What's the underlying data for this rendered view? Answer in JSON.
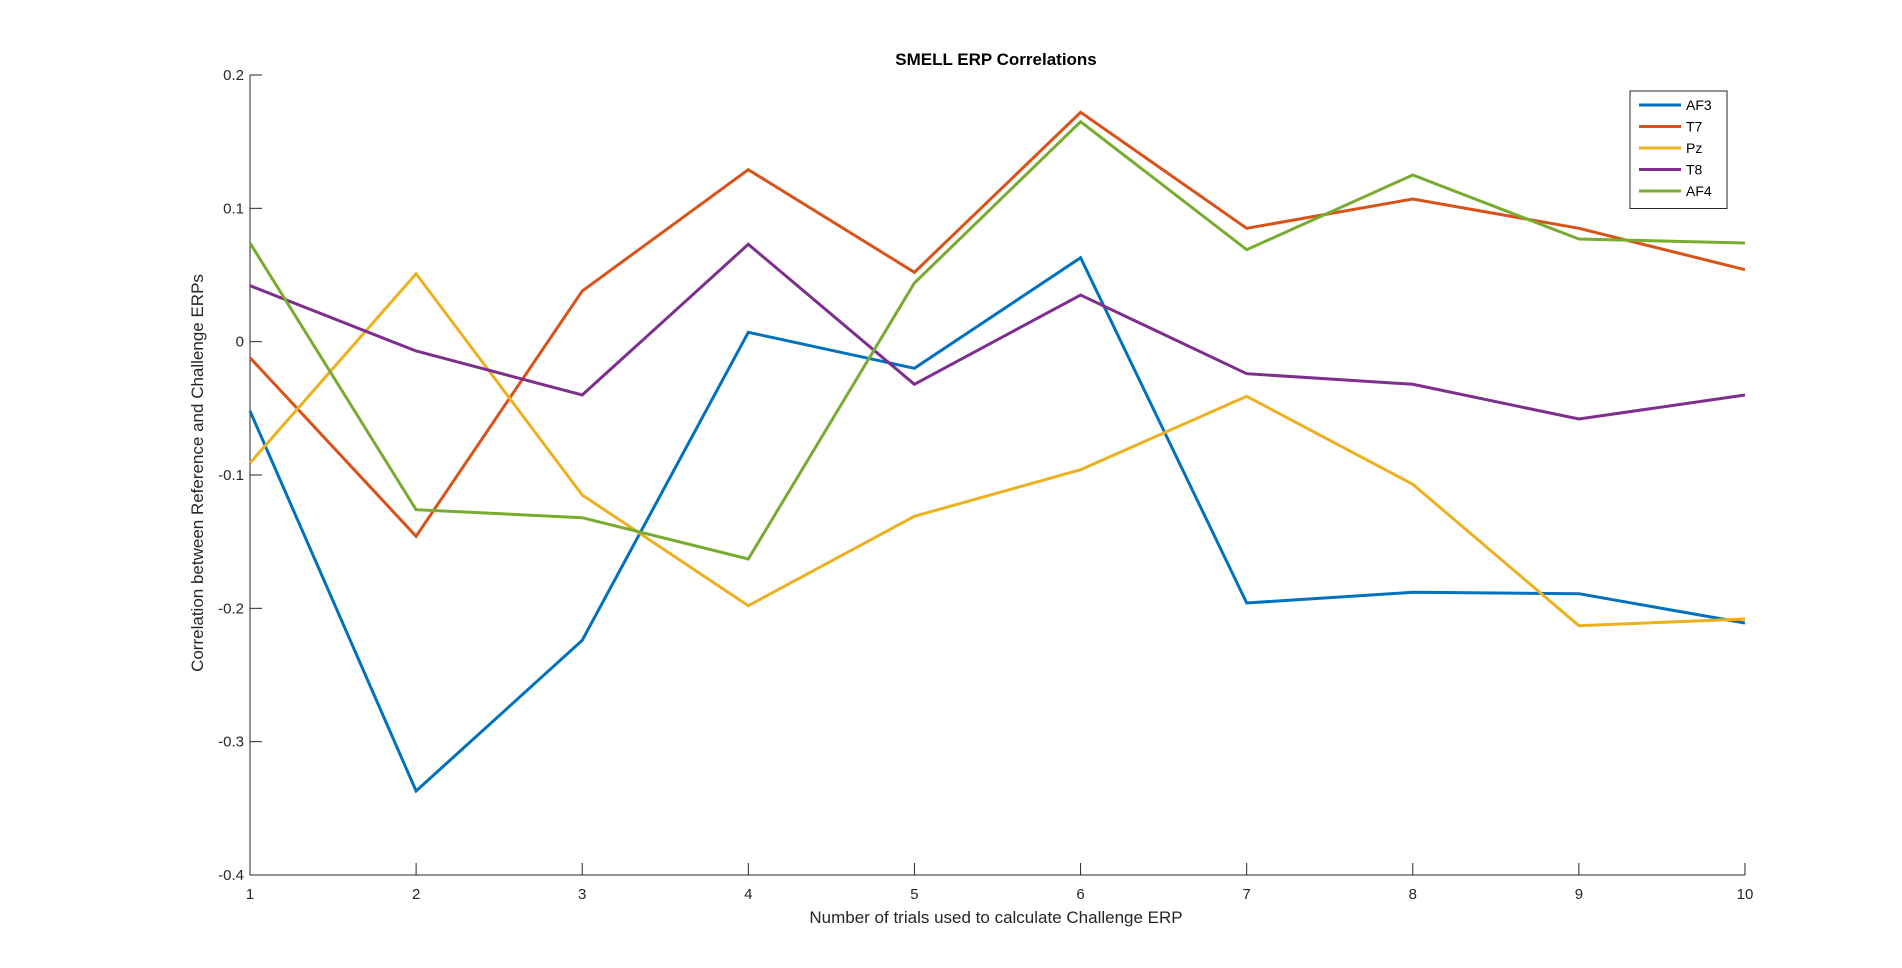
{
  "chart_data": {
    "type": "line",
    "title": "SMELL ERP Correlations",
    "xlabel": "Number of trials used to calculate Challenge ERP",
    "ylabel": "Correlation between Reference and Challenge ERPs",
    "x": [
      1,
      2,
      3,
      4,
      5,
      6,
      7,
      8,
      9,
      10
    ],
    "xlim": [
      1,
      10
    ],
    "ylim": [
      -0.4,
      0.2
    ],
    "xticks": [
      1,
      2,
      3,
      4,
      5,
      6,
      7,
      8,
      9,
      10
    ],
    "xtick_labels": [
      "1",
      "2",
      "3",
      "4",
      "5",
      "6",
      "7",
      "8",
      "9",
      "10"
    ],
    "yticks": [
      -0.4,
      -0.3,
      -0.2,
      -0.1,
      0,
      0.1,
      0.2
    ],
    "ytick_labels": [
      "-0.4",
      "-0.3",
      "-0.2",
      "-0.1",
      "0",
      "0.1",
      "0.2"
    ],
    "grid": false,
    "legend_position": "top-right",
    "series": [
      {
        "name": "AF3",
        "color": "#0072BD",
        "values": [
          -0.052,
          -0.337,
          -0.224,
          0.007,
          -0.02,
          0.063,
          -0.196,
          -0.188,
          -0.189,
          -0.211
        ]
      },
      {
        "name": "T7",
        "color": "#D95319",
        "values": [
          -0.012,
          -0.146,
          0.038,
          0.129,
          0.052,
          0.172,
          0.085,
          0.107,
          0.085,
          0.054
        ]
      },
      {
        "name": "Pz",
        "color": "#EDB120",
        "values": [
          -0.091,
          0.051,
          -0.115,
          -0.198,
          -0.131,
          -0.096,
          -0.041,
          -0.107,
          -0.213,
          -0.208
        ]
      },
      {
        "name": "T8",
        "color": "#7E2F8E",
        "values": [
          0.042,
          -0.007,
          -0.04,
          0.073,
          -0.032,
          0.035,
          -0.024,
          -0.032,
          -0.058,
          -0.04
        ]
      },
      {
        "name": "AF4",
        "color": "#77AC30",
        "values": [
          0.074,
          -0.126,
          -0.132,
          -0.163,
          0.044,
          0.165,
          0.069,
          0.125,
          0.077,
          0.074
        ]
      }
    ]
  }
}
